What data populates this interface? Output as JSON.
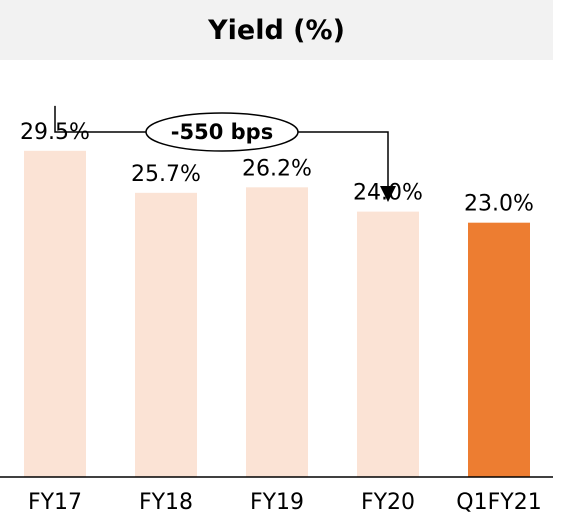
{
  "colors": {
    "bar_light": "#fbe3d5",
    "bar_highlight": "#ed7d31",
    "title_bg": "#f2f2f2",
    "axis": "#000000"
  },
  "chart_data": {
    "type": "bar",
    "title": "Yield (%)",
    "categories": [
      "FY17",
      "FY18",
      "FY19",
      "FY20",
      "Q1FY21"
    ],
    "values": [
      29.5,
      25.7,
      26.2,
      24.0,
      23.0
    ],
    "value_labels": [
      "29.5%",
      "25.7%",
      "26.2%",
      "24.0%",
      "23.0%"
    ],
    "highlight_index": 4,
    "ylim": [
      0,
      35
    ],
    "grid": false,
    "annotation": {
      "text": "-550 bps",
      "from_category": "FY17",
      "to_category": "FY20"
    }
  }
}
